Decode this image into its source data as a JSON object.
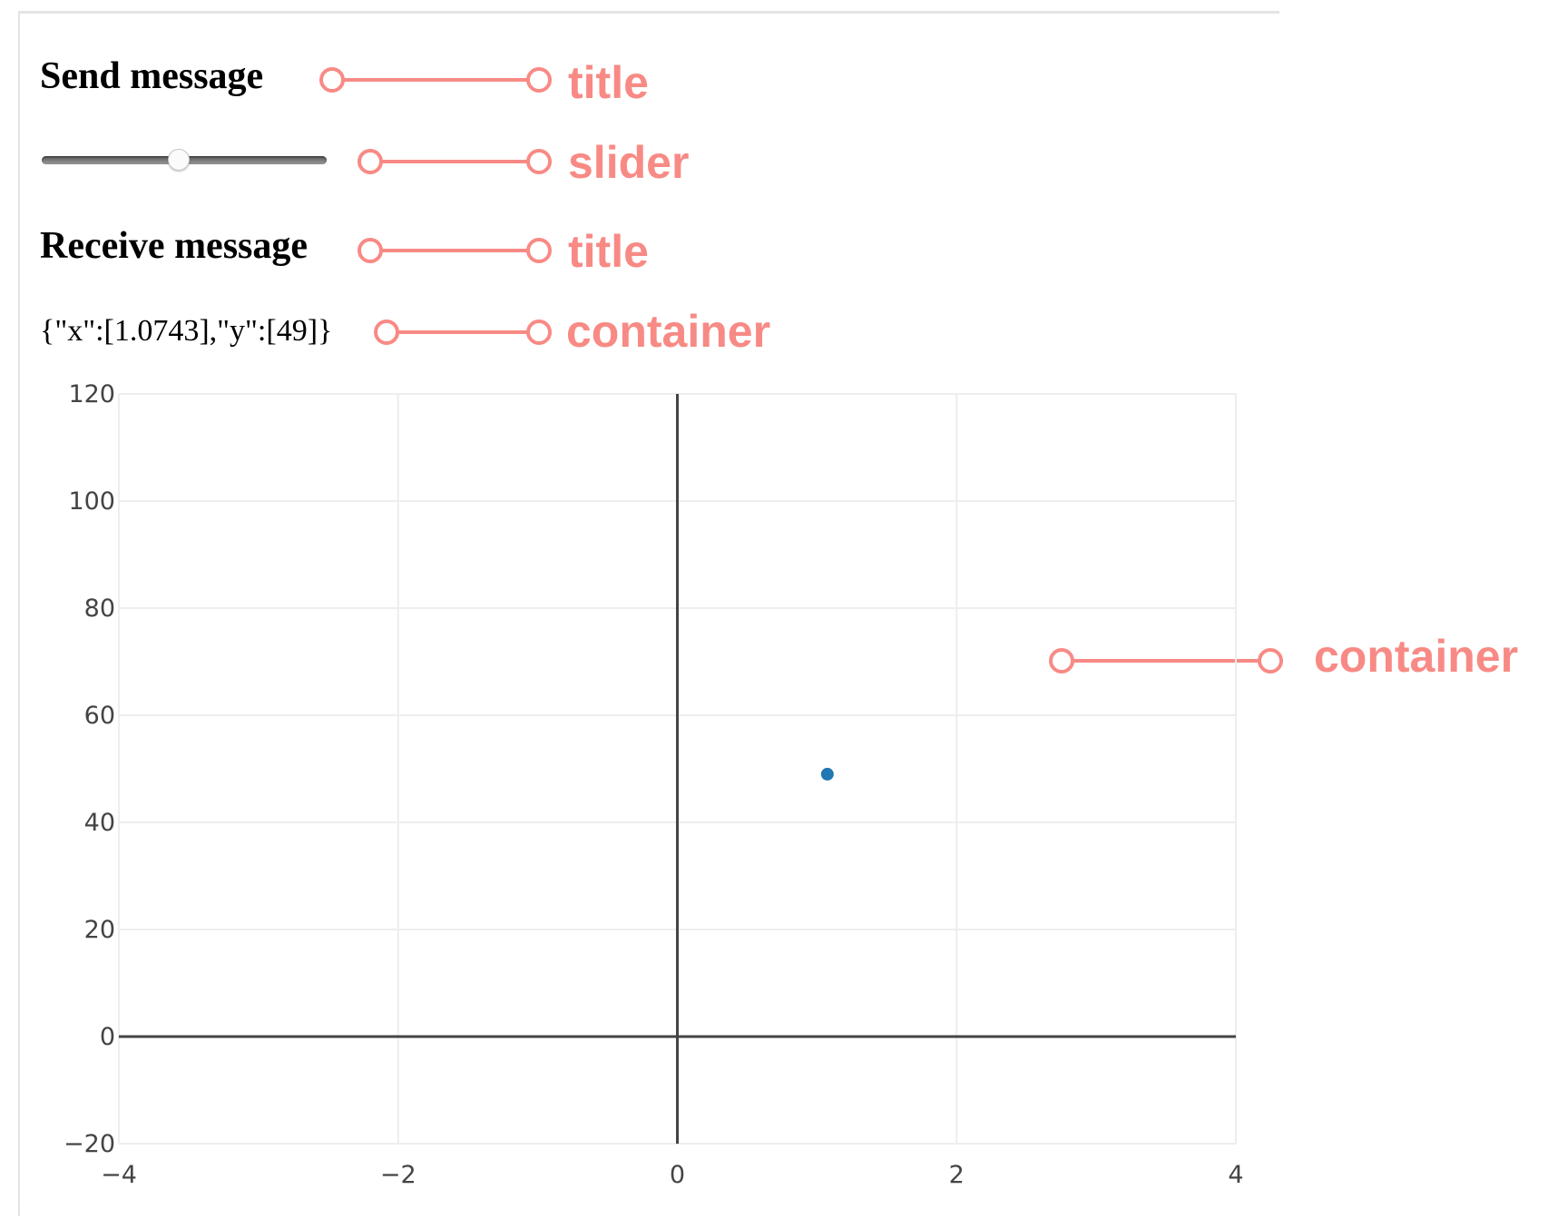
{
  "send": {
    "title": "Send message",
    "slider_value": 0.48
  },
  "receive": {
    "title": "Receive message",
    "message": "{\"x\":[1.0743],\"y\":[49]}"
  },
  "annotations": [
    {
      "label": "title"
    },
    {
      "label": "slider"
    },
    {
      "label": "title"
    },
    {
      "label": "container"
    },
    {
      "label": "container"
    }
  ],
  "colors": {
    "annotation": "#f88a85",
    "marker": "#1f77b4"
  },
  "chart_data": {
    "type": "scatter",
    "series": [
      {
        "x": [
          1.0743
        ],
        "y": [
          49
        ]
      }
    ],
    "xlim": [
      -4,
      4
    ],
    "ylim": [
      -20,
      120
    ],
    "xticks": [
      "−4",
      "−2",
      "0",
      "2",
      "4"
    ],
    "yticks": [
      "−20",
      "0",
      "20",
      "40",
      "60",
      "80",
      "100",
      "120"
    ],
    "xticks_values": [
      -4,
      -2,
      0,
      2,
      4
    ],
    "yticks_values": [
      -20,
      0,
      20,
      40,
      60,
      80,
      100,
      120
    ],
    "grid": true
  }
}
